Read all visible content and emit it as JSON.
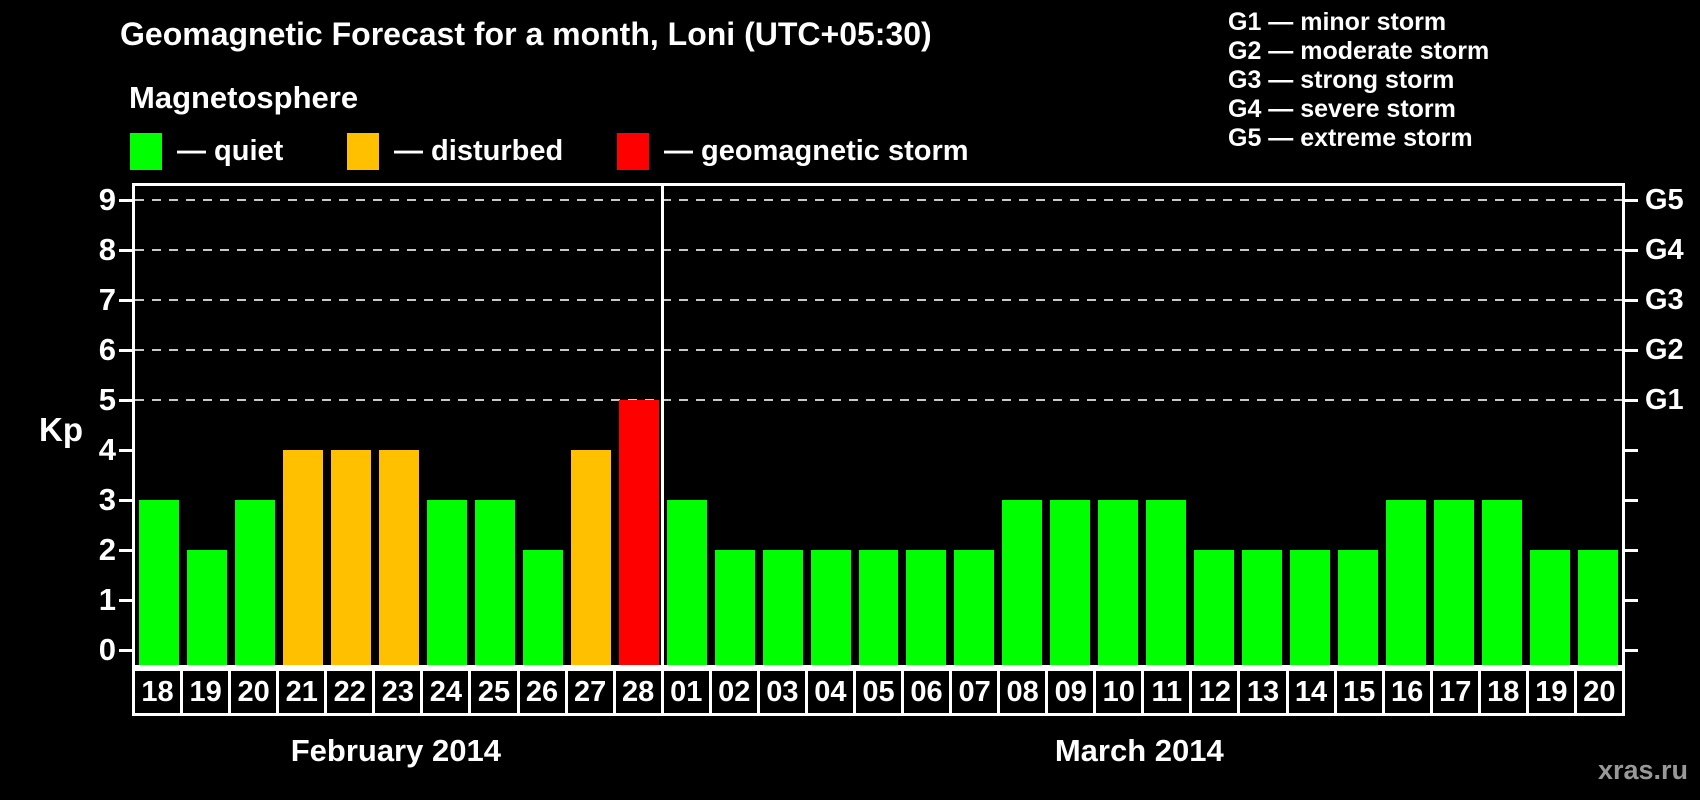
{
  "title": "Geomagnetic Forecast for a month, Loni (UTC+05:30)",
  "subtitle": "Magnetosphere",
  "legend": {
    "items": [
      {
        "status": "quiet",
        "label": "— quiet",
        "color": "#00FF00"
      },
      {
        "status": "disturbed",
        "label": "— disturbed",
        "color": "#FFC000"
      },
      {
        "status": "storm",
        "label": "— geomagnetic storm",
        "color": "#FF0000"
      }
    ]
  },
  "g_scale_legend": {
    "items": [
      {
        "label": "G1 — minor storm"
      },
      {
        "label": "G2 — moderate storm"
      },
      {
        "label": "G3 — strong storm"
      },
      {
        "label": "G4 — severe storm"
      },
      {
        "label": "G5 — extreme storm"
      }
    ]
  },
  "y_axis": {
    "label": "Kp",
    "ticks": [
      "0",
      "1",
      "2",
      "3",
      "4",
      "5",
      "6",
      "7",
      "8",
      "9"
    ]
  },
  "right_axis": {
    "labels": [
      {
        "kp": 5,
        "label": "G1"
      },
      {
        "kp": 6,
        "label": "G2"
      },
      {
        "kp": 7,
        "label": "G3"
      },
      {
        "kp": 8,
        "label": "G4"
      },
      {
        "kp": 9,
        "label": "G5"
      }
    ],
    "gridline_levels": [
      5,
      6,
      7,
      8,
      9
    ],
    "gridline_color": "#C8C8C8"
  },
  "chart_data": {
    "type": "bar",
    "ylabel": "Kp",
    "ylim": [
      0,
      9
    ],
    "grid": "dashed horizontal at Kp 5-9",
    "legend_position": "top-left",
    "months": [
      {
        "label": "February 2014",
        "days": [
          {
            "date": "18",
            "kp": 3,
            "status": "quiet"
          },
          {
            "date": "19",
            "kp": 2,
            "status": "quiet"
          },
          {
            "date": "20",
            "kp": 3,
            "status": "quiet"
          },
          {
            "date": "21",
            "kp": 4,
            "status": "disturbed"
          },
          {
            "date": "22",
            "kp": 4,
            "status": "disturbed"
          },
          {
            "date": "23",
            "kp": 4,
            "status": "disturbed"
          },
          {
            "date": "24",
            "kp": 3,
            "status": "quiet"
          },
          {
            "date": "25",
            "kp": 3,
            "status": "quiet"
          },
          {
            "date": "26",
            "kp": 2,
            "status": "quiet"
          },
          {
            "date": "27",
            "kp": 4,
            "status": "disturbed"
          },
          {
            "date": "28",
            "kp": 5,
            "status": "storm"
          }
        ]
      },
      {
        "label": "March 2014",
        "days": [
          {
            "date": "01",
            "kp": 3,
            "status": "quiet"
          },
          {
            "date": "02",
            "kp": 2,
            "status": "quiet"
          },
          {
            "date": "03",
            "kp": 2,
            "status": "quiet"
          },
          {
            "date": "04",
            "kp": 2,
            "status": "quiet"
          },
          {
            "date": "05",
            "kp": 2,
            "status": "quiet"
          },
          {
            "date": "06",
            "kp": 2,
            "status": "quiet"
          },
          {
            "date": "07",
            "kp": 2,
            "status": "quiet"
          },
          {
            "date": "08",
            "kp": 3,
            "status": "quiet"
          },
          {
            "date": "09",
            "kp": 3,
            "status": "quiet"
          },
          {
            "date": "10",
            "kp": 3,
            "status": "quiet"
          },
          {
            "date": "11",
            "kp": 3,
            "status": "quiet"
          },
          {
            "date": "12",
            "kp": 2,
            "status": "quiet"
          },
          {
            "date": "13",
            "kp": 2,
            "status": "quiet"
          },
          {
            "date": "14",
            "kp": 2,
            "status": "quiet"
          },
          {
            "date": "15",
            "kp": 2,
            "status": "quiet"
          },
          {
            "date": "16",
            "kp": 3,
            "status": "quiet"
          },
          {
            "date": "17",
            "kp": 3,
            "status": "quiet"
          },
          {
            "date": "18",
            "kp": 3,
            "status": "quiet"
          },
          {
            "date": "19",
            "kp": 2,
            "status": "quiet"
          },
          {
            "date": "20",
            "kp": 2,
            "status": "quiet"
          }
        ]
      }
    ]
  },
  "watermark": "xras.ru"
}
